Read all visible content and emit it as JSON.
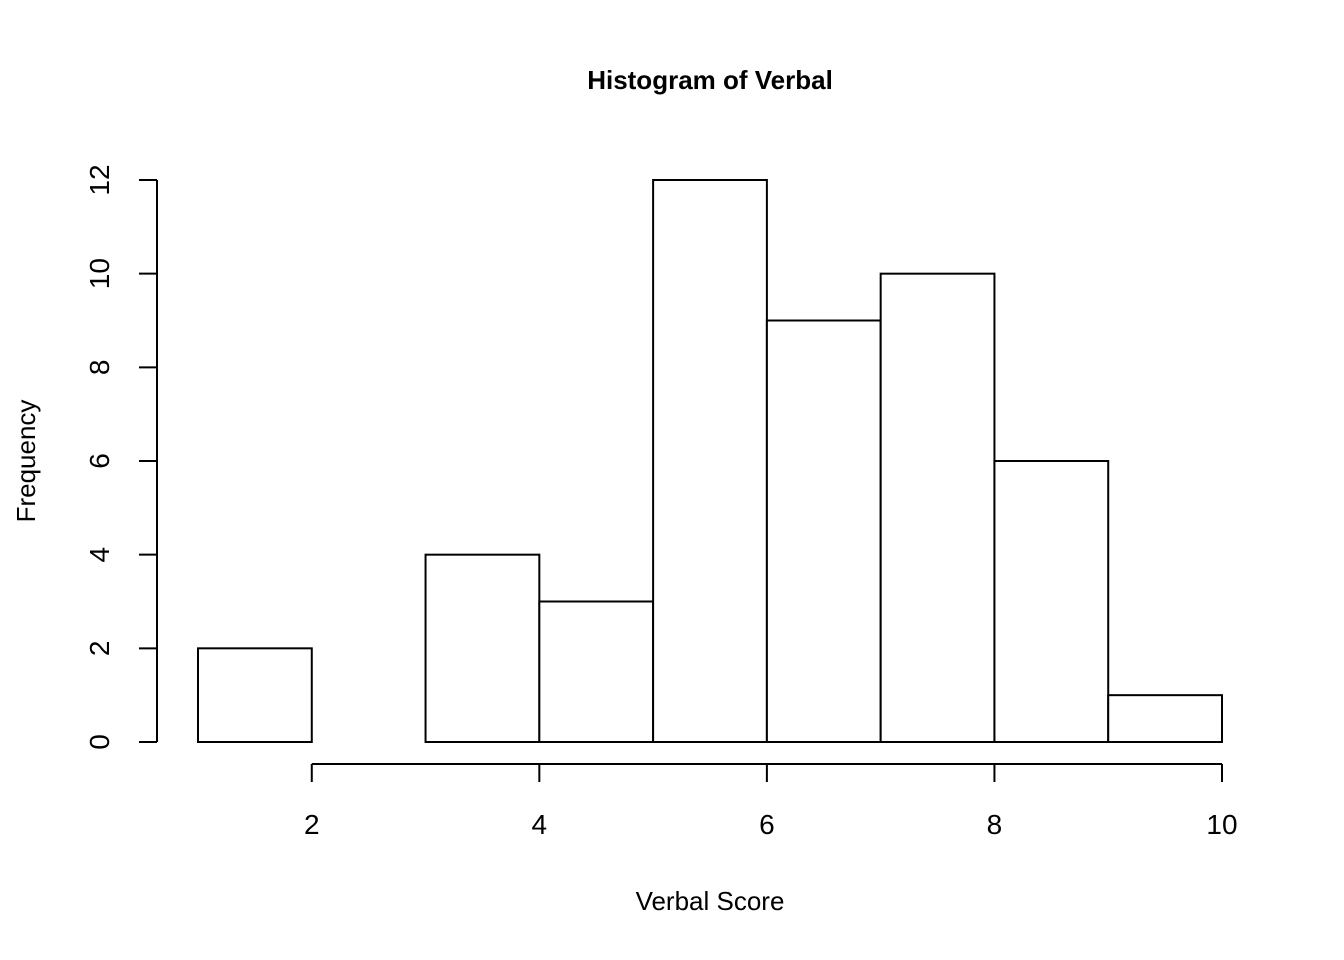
{
  "chart_data": {
    "type": "bar",
    "title": "Histogram of Verbal",
    "xlabel": "Verbal Score",
    "ylabel": "Frequency",
    "bins": [
      {
        "x0": 1,
        "x1": 2,
        "count": 2
      },
      {
        "x0": 2,
        "x1": 3,
        "count": 0
      },
      {
        "x0": 3,
        "x1": 4,
        "count": 4
      },
      {
        "x0": 4,
        "x1": 5,
        "count": 3
      },
      {
        "x0": 5,
        "x1": 6,
        "count": 12
      },
      {
        "x0": 6,
        "x1": 7,
        "count": 9
      },
      {
        "x0": 7,
        "x1": 8,
        "count": 10
      },
      {
        "x0": 8,
        "x1": 9,
        "count": 6
      },
      {
        "x0": 9,
        "x1": 10,
        "count": 1
      }
    ],
    "x_ticks": [
      2,
      4,
      6,
      8,
      10
    ],
    "y_ticks": [
      0,
      2,
      4,
      6,
      8,
      10,
      12
    ],
    "xlim": [
      1,
      10
    ],
    "ylim": [
      0,
      12
    ],
    "grid": false
  }
}
